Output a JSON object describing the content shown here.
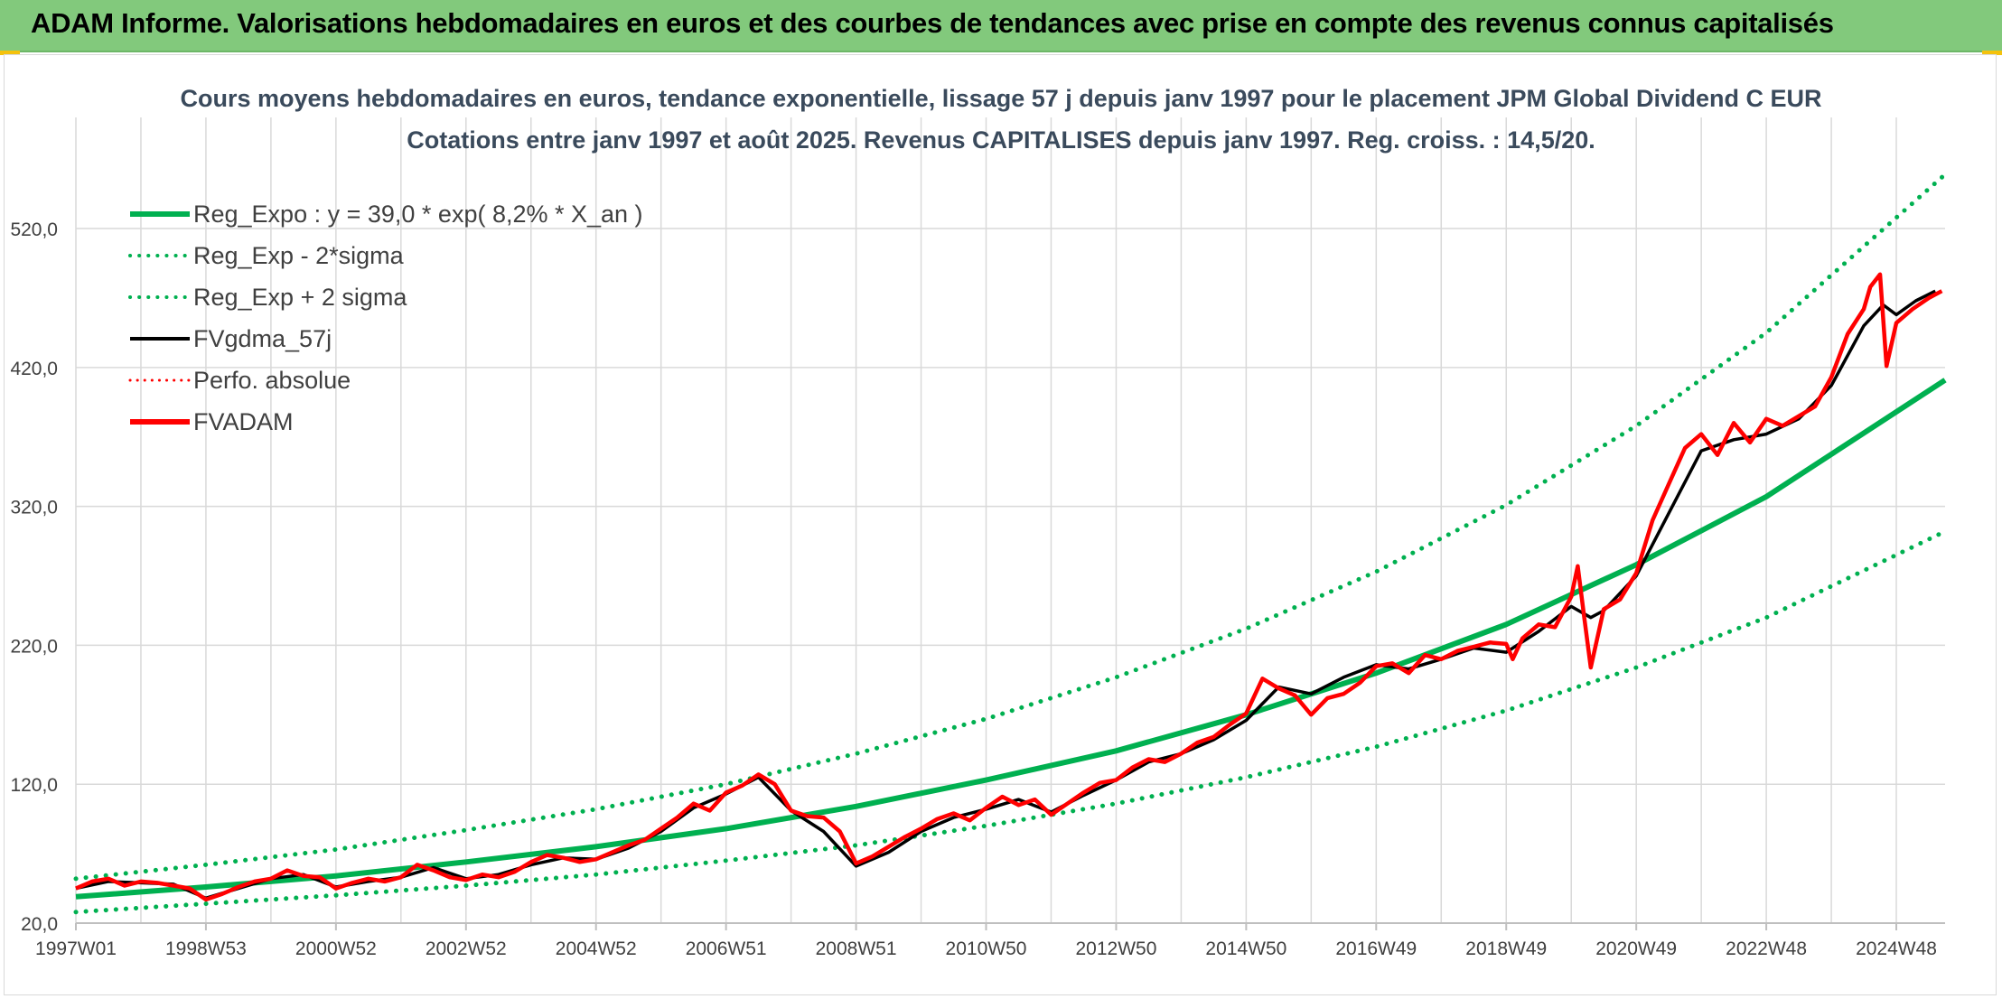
{
  "header": {
    "title": "ADAM Informe. Valorisations hebdomadaires en euros et des courbes de tendances avec prise en compte des revenus connus capitalisés"
  },
  "colors": {
    "header_bg": "#82c97c",
    "reg_green": "#00b050",
    "red": "#ff0000",
    "black": "#000000",
    "grid": "#d9d9d9"
  },
  "chart_data": {
    "type": "line",
    "title": "Cours moyens hebdomadaires en euros, tendance exponentielle, lissage 57 j depuis janv 1997 pour le placement JPM Global Dividend C EUR",
    "subtitle": "Cotations entre janv 1997 et août 2025. Revenus CAPITALISES depuis janv 1997. Reg. croiss. : 14,5/20.",
    "xlabel": "",
    "ylabel": "",
    "xlim": [
      1997.0,
      2025.75
    ],
    "ylim": [
      20,
      600
    ],
    "grid": true,
    "legend_position": "top-left",
    "x_ticks": [
      {
        "label": "1997W01",
        "x": 1997.0
      },
      {
        "label": "1998W53",
        "x": 1999.0
      },
      {
        "label": "2000W52",
        "x": 2001.0
      },
      {
        "label": "2002W52",
        "x": 2003.0
      },
      {
        "label": "2004W52",
        "x": 2005.0
      },
      {
        "label": "2006W51",
        "x": 2007.0
      },
      {
        "label": "2008W51",
        "x": 2009.0
      },
      {
        "label": "2010W50",
        "x": 2011.0
      },
      {
        "label": "2012W50",
        "x": 2013.0
      },
      {
        "label": "2014W50",
        "x": 2015.0
      },
      {
        "label": "2016W49",
        "x": 2017.0
      },
      {
        "label": "2018W49",
        "x": 2019.0
      },
      {
        "label": "2020W49",
        "x": 2021.0
      },
      {
        "label": "2022W48",
        "x": 2023.0
      },
      {
        "label": "2024W48",
        "x": 2025.0
      }
    ],
    "y_ticks": [
      {
        "label": "20,0",
        "value": 20
      },
      {
        "label": "120,0",
        "value": 120
      },
      {
        "label": "220,0",
        "value": 220
      },
      {
        "label": "320,0",
        "value": 320
      },
      {
        "label": "420,0",
        "value": 420
      },
      {
        "label": "520,0",
        "value": 520
      }
    ],
    "legend": [
      {
        "label": "Reg_Expo : y = 39,0 * exp( 8,2% *  X_an )",
        "color": "#00b050",
        "style": "solid",
        "width": 6
      },
      {
        "label": "Reg_Exp - 2*sigma",
        "color": "#00b050",
        "style": "dotted",
        "width": 4
      },
      {
        "label": "Reg_Exp + 2 sigma",
        "color": "#00b050",
        "style": "dotted",
        "width": 4
      },
      {
        "label": "FVgdma_57j",
        "color": "#000000",
        "style": "solid",
        "width": 4
      },
      {
        "label": "Perfo. absolue",
        "color": "#ff0000",
        "style": "dotted",
        "width": 3
      },
      {
        "label": "FVADAM",
        "color": "#ff0000",
        "style": "solid",
        "width": 6
      }
    ],
    "series": [
      {
        "name": "Reg_Expo : y = 39,0 * exp( 8,2% *  X_an )",
        "color": "#00b050",
        "style": "solid",
        "x": [
          1997.0,
          1999.0,
          2001.0,
          2003.0,
          2005.0,
          2007.0,
          2009.0,
          2011.0,
          2013.0,
          2015.0,
          2017.0,
          2019.0,
          2021.0,
          2023.0,
          2025.75
        ],
        "y": [
          39,
          46,
          54,
          64,
          75,
          88,
          104,
          123,
          144,
          170,
          200,
          235,
          278,
          327,
          411
        ]
      },
      {
        "name": "Reg_Exp - 2*sigma",
        "color": "#00b050",
        "style": "dotted",
        "x": [
          1997.0,
          1999.0,
          2001.0,
          2003.0,
          2005.0,
          2007.0,
          2009.0,
          2011.0,
          2013.0,
          2015.0,
          2017.0,
          2019.0,
          2021.0,
          2023.0,
          2025.75
        ],
        "y": [
          28,
          34,
          40,
          47,
          55,
          65,
          76,
          90,
          106,
          125,
          147,
          173,
          204,
          240,
          302
        ]
      },
      {
        "name": "Reg_Exp + 2 sigma",
        "color": "#00b050",
        "style": "dotted",
        "x": [
          1997.0,
          1999.0,
          2001.0,
          2003.0,
          2005.0,
          2007.0,
          2009.0,
          2011.0,
          2013.0,
          2015.0,
          2017.0,
          2019.0,
          2021.0,
          2023.0,
          2025.75
        ],
        "y": [
          52,
          62,
          73,
          87,
          102,
          120,
          142,
          167,
          197,
          232,
          273,
          321,
          378,
          445,
          559
        ]
      },
      {
        "name": "FVgdma_57j",
        "color": "#000000",
        "style": "solid",
        "x": [
          1997.0,
          1997.5,
          1998.0,
          1998.5,
          1999.0,
          1999.5,
          2000.0,
          2000.5,
          2001.0,
          2001.5,
          2002.0,
          2002.5,
          2003.0,
          2003.5,
          2004.0,
          2004.5,
          2005.0,
          2005.5,
          2006.0,
          2006.5,
          2007.0,
          2007.5,
          2008.0,
          2008.5,
          2009.0,
          2009.5,
          2010.0,
          2010.5,
          2011.0,
          2011.5,
          2012.0,
          2012.5,
          2013.0,
          2013.5,
          2014.0,
          2014.5,
          2015.0,
          2015.5,
          2016.0,
          2016.5,
          2017.0,
          2017.5,
          2018.0,
          2018.5,
          2019.0,
          2019.5,
          2020.0,
          2020.3,
          2020.5,
          2021.0,
          2021.5,
          2022.0,
          2022.5,
          2023.0,
          2023.5,
          2024.0,
          2024.5,
          2024.8,
          2025.0,
          2025.3,
          2025.6
        ],
        "y": [
          45,
          50,
          49,
          48,
          38,
          45,
          52,
          55,
          46,
          50,
          53,
          60,
          52,
          55,
          62,
          67,
          66,
          74,
          86,
          103,
          113,
          125,
          101,
          86,
          61,
          71,
          86,
          96,
          102,
          109,
          100,
          112,
          123,
          136,
          142,
          152,
          166,
          190,
          185,
          197,
          206,
          203,
          210,
          218,
          215,
          230,
          248,
          240,
          245,
          270,
          315,
          360,
          368,
          372,
          383,
          407,
          450,
          465,
          458,
          468,
          475
        ]
      },
      {
        "name": "FVADAM",
        "color": "#ff0000",
        "style": "solid",
        "x": [
          1997.0,
          1997.25,
          1997.5,
          1997.75,
          1998.0,
          1998.25,
          1998.5,
          1998.75,
          1999.0,
          1999.25,
          1999.5,
          1999.75,
          2000.0,
          2000.25,
          2000.5,
          2000.75,
          2001.0,
          2001.25,
          2001.5,
          2001.75,
          2002.0,
          2002.25,
          2002.5,
          2002.75,
          2003.0,
          2003.25,
          2003.5,
          2003.75,
          2004.0,
          2004.25,
          2004.5,
          2004.75,
          2005.0,
          2005.25,
          2005.5,
          2005.75,
          2006.0,
          2006.25,
          2006.5,
          2006.75,
          2007.0,
          2007.25,
          2007.5,
          2007.75,
          2008.0,
          2008.25,
          2008.5,
          2008.75,
          2009.0,
          2009.25,
          2009.5,
          2009.75,
          2010.0,
          2010.25,
          2010.5,
          2010.75,
          2011.0,
          2011.25,
          2011.5,
          2011.75,
          2012.0,
          2012.25,
          2012.5,
          2012.75,
          2013.0,
          2013.25,
          2013.5,
          2013.75,
          2014.0,
          2014.25,
          2014.5,
          2014.75,
          2015.0,
          2015.25,
          2015.5,
          2015.75,
          2016.0,
          2016.25,
          2016.5,
          2016.75,
          2017.0,
          2017.25,
          2017.5,
          2017.75,
          2018.0,
          2018.25,
          2018.5,
          2018.75,
          2019.0,
          2019.1,
          2019.25,
          2019.5,
          2019.75,
          2020.0,
          2020.1,
          2020.2,
          2020.3,
          2020.5,
          2020.75,
          2021.0,
          2021.25,
          2021.5,
          2021.75,
          2022.0,
          2022.25,
          2022.5,
          2022.75,
          2023.0,
          2023.25,
          2023.5,
          2023.75,
          2024.0,
          2024.25,
          2024.5,
          2024.6,
          2024.75,
          2024.85,
          2025.0,
          2025.25,
          2025.5,
          2025.7
        ],
        "y": [
          45,
          50,
          52,
          47,
          50,
          49,
          47,
          45,
          37,
          41,
          46,
          50,
          52,
          58,
          54,
          53,
          45,
          49,
          52,
          50,
          53,
          62,
          58,
          53,
          51,
          55,
          53,
          57,
          64,
          69,
          67,
          64,
          66,
          71,
          76,
          80,
          88,
          96,
          106,
          101,
          114,
          119,
          127,
          120,
          101,
          97,
          96,
          86,
          63,
          68,
          75,
          82,
          88,
          95,
          99,
          94,
          103,
          111,
          105,
          109,
          98,
          106,
          114,
          121,
          123,
          132,
          138,
          136,
          142,
          150,
          154,
          163,
          171,
          196,
          189,
          184,
          170,
          182,
          185,
          193,
          205,
          207,
          200,
          213,
          210,
          216,
          219,
          222,
          221,
          210,
          225,
          235,
          233,
          255,
          277,
          240,
          204,
          246,
          253,
          272,
          310,
          336,
          362,
          372,
          357,
          380,
          366,
          383,
          378,
          385,
          392,
          413,
          444,
          462,
          478,
          487,
          421,
          452,
          462,
          470,
          475
        ]
      }
    ]
  }
}
